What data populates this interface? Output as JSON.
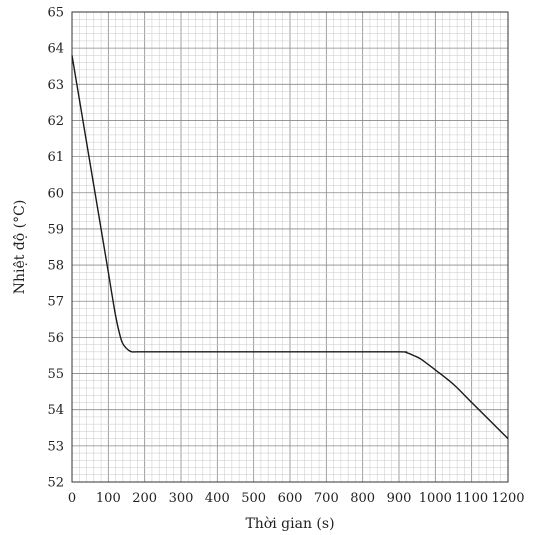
{
  "chart_data": {
    "type": "line",
    "title": "",
    "xlabel": "Thời gian (s)",
    "ylabel": "Nhiệt độ (°C)",
    "xlim": [
      0,
      1200
    ],
    "ylim": [
      52,
      65
    ],
    "x_ticks": [
      "0",
      "100",
      "200",
      "300",
      "400",
      "500",
      "600",
      "700",
      "800",
      "900",
      "1000",
      "1100",
      "1200"
    ],
    "y_ticks": [
      "52",
      "53",
      "54",
      "55",
      "56",
      "57",
      "58",
      "59",
      "60",
      "61",
      "62",
      "63",
      "64",
      "65"
    ],
    "grid": true,
    "series": [
      {
        "x": [
          0,
          20,
          40,
          60,
          80,
          100,
          120,
          135,
          145,
          155,
          165,
          180,
          300,
          500,
          700,
          900,
          920,
          940,
          960,
          1000,
          1050,
          1100,
          1150,
          1200
        ],
        "y": [
          63.8,
          62.6,
          61.4,
          60.2,
          59.0,
          57.8,
          56.6,
          55.95,
          55.75,
          55.65,
          55.6,
          55.6,
          55.6,
          55.6,
          55.6,
          55.6,
          55.58,
          55.5,
          55.4,
          55.1,
          54.7,
          54.2,
          53.7,
          53.2
        ]
      }
    ]
  }
}
